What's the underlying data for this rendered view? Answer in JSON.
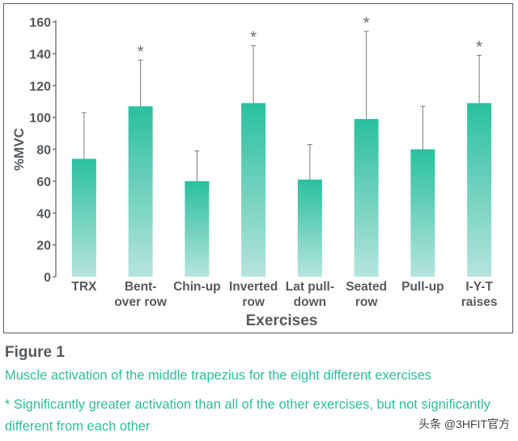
{
  "chart_data": {
    "type": "bar",
    "title": "",
    "xlabel": "Exercises",
    "ylabel": "%MVC",
    "ylim": [
      0,
      160
    ],
    "yticks": [
      0,
      20,
      40,
      60,
      80,
      100,
      120,
      140,
      160
    ],
    "grid": false,
    "categories": [
      [
        "TRX"
      ],
      [
        "Bent-",
        "over row"
      ],
      [
        "Chin-up"
      ],
      [
        "Inverted",
        "row"
      ],
      [
        "Lat pull-",
        "down"
      ],
      [
        "Seated",
        "row"
      ],
      [
        "Pull-up"
      ],
      [
        "I-Y-T",
        "raises"
      ]
    ],
    "values": [
      74,
      107,
      60,
      109,
      61,
      99,
      80,
      109
    ],
    "error_upper": [
      103,
      136,
      79,
      145,
      83,
      154,
      107,
      139
    ],
    "significant": [
      false,
      true,
      false,
      true,
      false,
      true,
      false,
      true
    ],
    "significance_marker": "*",
    "bar_color_top": "#29c09e",
    "bar_color_bottom": "#b6e4dd",
    "axis_color": "#555a5e"
  },
  "caption": {
    "label": "Figure 1",
    "description": "Muscle activation of the middle trapezius for the eight different exercises",
    "note": "* Significantly greater activation than all of the other exercises, but not significantly different from each other"
  },
  "watermark": "头条 @3HFIT官方"
}
